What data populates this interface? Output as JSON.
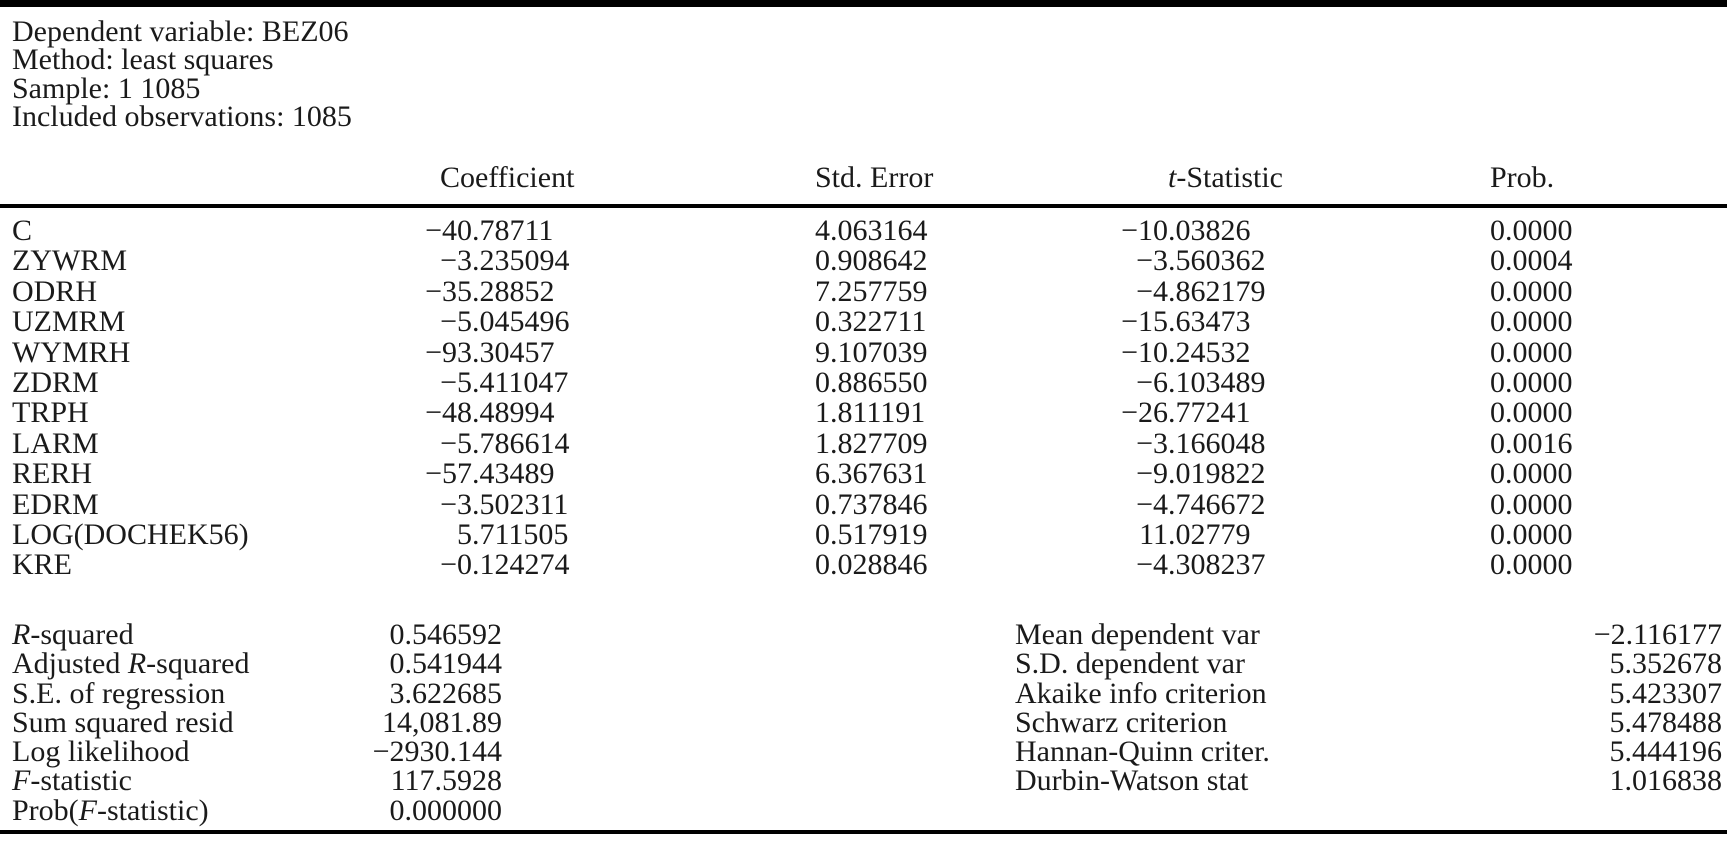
{
  "page": {
    "background": "#ffffff",
    "text_color": "#1a1a1a",
    "rule_color": "#000000"
  },
  "info": {
    "lines": [
      "Dependent variable: BEZ06",
      "Method: least squares",
      "Sample: 1 1085",
      "Included observations: 1085"
    ]
  },
  "table": {
    "headers": {
      "coefficient": "Coefficient",
      "std_error": "Std. Error",
      "t_statistic_it": "t",
      "t_statistic_rest": "-Statistic",
      "prob": "Prob."
    },
    "rows": [
      {
        "variable": "C",
        "coefficient": "−40.78711",
        "std_error": "4.063164",
        "t_statistic": "−10.03826",
        "prob": "0.0000"
      },
      {
        "variable": "ZYWRM",
        "coefficient": "−3.235094",
        "std_error": "0.908642",
        "t_statistic": "−3.560362",
        "prob": "0.0004"
      },
      {
        "variable": "ODRH",
        "coefficient": "−35.28852",
        "std_error": "7.257759",
        "t_statistic": "−4.862179",
        "prob": "0.0000"
      },
      {
        "variable": "UZMRM",
        "coefficient": "−5.045496",
        "std_error": "0.322711",
        "t_statistic": "−15.63473",
        "prob": "0.0000"
      },
      {
        "variable": "WYMRH",
        "coefficient": "−93.30457",
        "std_error": "9.107039",
        "t_statistic": "−10.24532",
        "prob": "0.0000"
      },
      {
        "variable": "ZDRM",
        "coefficient": "−5.411047",
        "std_error": "0.886550",
        "t_statistic": "−6.103489",
        "prob": "0.0000"
      },
      {
        "variable": "TRPH",
        "coefficient": "−48.48994",
        "std_error": "1.811191",
        "t_statistic": "−26.77241",
        "prob": "0.0000"
      },
      {
        "variable": "LARM",
        "coefficient": "−5.786614",
        "std_error": "1.827709",
        "t_statistic": "−3.166048",
        "prob": "0.0016"
      },
      {
        "variable": "RERH",
        "coefficient": "−57.43489",
        "std_error": "6.367631",
        "t_statistic": "−9.019822",
        "prob": "0.0000"
      },
      {
        "variable": "EDRM",
        "coefficient": "−3.502311",
        "std_error": "0.737846",
        "t_statistic": "−4.746672",
        "prob": "0.0000"
      },
      {
        "variable": "LOG(DOCHEK56)",
        "coefficient": "5.711505",
        "std_error": "0.517919",
        "t_statistic": "11.02779",
        "prob": "0.0000"
      },
      {
        "variable": "KRE",
        "coefficient": "−0.124274",
        "std_error": "0.028846",
        "t_statistic": "−4.308237",
        "prob": "0.0000"
      }
    ]
  },
  "summary": {
    "left": [
      {
        "pre": "",
        "it": "R",
        "post": "-squared",
        "value": "0.546592"
      },
      {
        "pre": "Adjusted ",
        "it": "R",
        "post": "-squared",
        "value": "0.541944"
      },
      {
        "pre": "S.E. of regression",
        "it": "",
        "post": "",
        "value": "3.622685"
      },
      {
        "pre": "Sum squared resid",
        "it": "",
        "post": "",
        "value": "14,081.89"
      },
      {
        "pre": "Log likelihood",
        "it": "",
        "post": "",
        "value": "−2930.144"
      },
      {
        "pre": "",
        "it": "F",
        "post": "-statistic",
        "value": "117.5928"
      },
      {
        "pre": "Prob(",
        "it": "F",
        "post": "-statistic)",
        "value": "0.000000"
      }
    ],
    "right": [
      {
        "label": "Mean dependent var",
        "value": "−2.116177"
      },
      {
        "label": "S.D. dependent var",
        "value": "5.352678"
      },
      {
        "label": "Akaike info criterion",
        "value": "5.423307"
      },
      {
        "label": "Schwarz criterion",
        "value": "5.478488"
      },
      {
        "label": "Hannan-Quinn criter.",
        "value": "5.444196"
      },
      {
        "label": "Durbin-Watson stat",
        "value": "1.016838"
      }
    ]
  }
}
